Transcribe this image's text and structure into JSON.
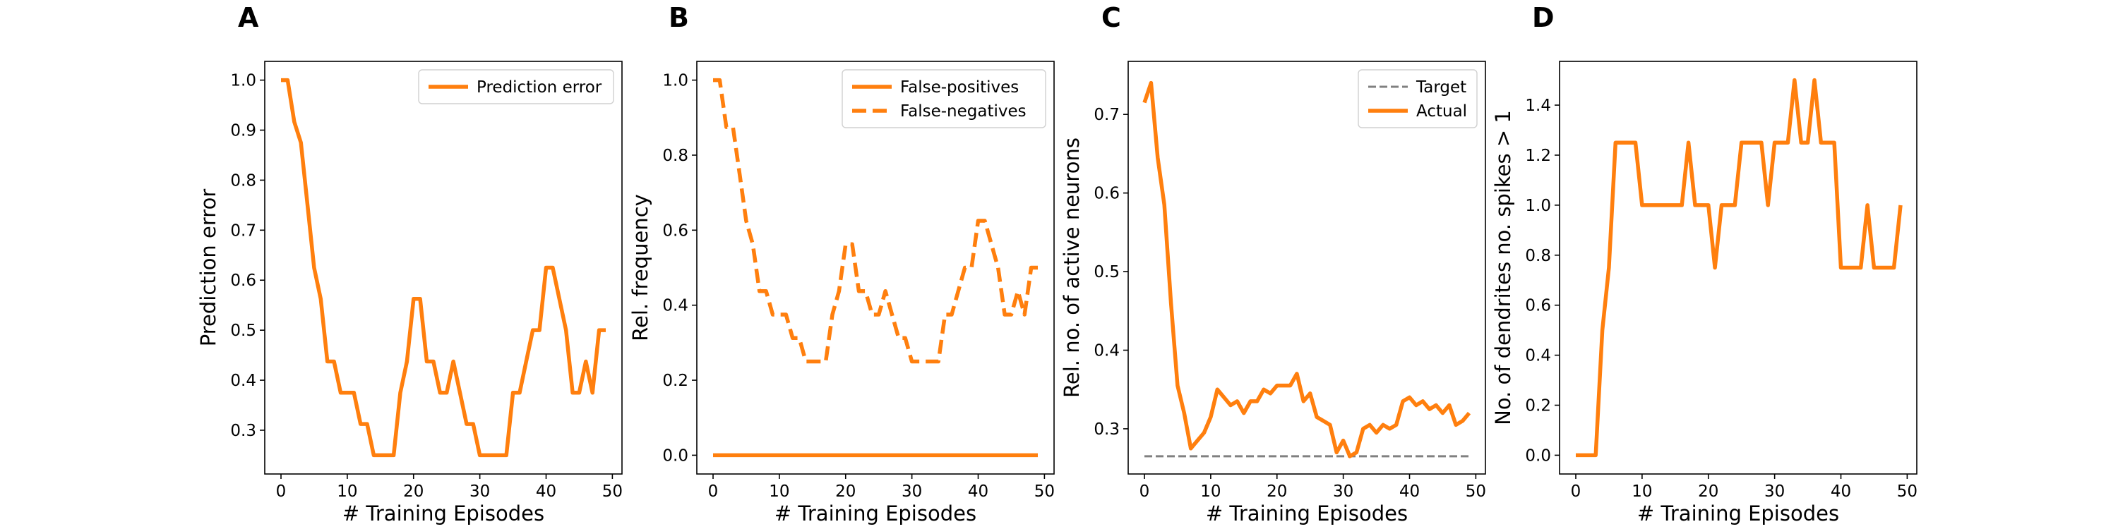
{
  "colors": {
    "series": "#ff7f0e",
    "target": "#808080",
    "axis": "#000000"
  },
  "chart_data": [
    {
      "panel": "A",
      "type": "line",
      "xlabel": "# Training Episodes",
      "ylabel": "Prediction error",
      "xlim": [
        -2.45,
        51.45
      ],
      "ylim": [
        0.2125,
        1.0375
      ],
      "xticks": [
        0,
        10,
        20,
        30,
        40,
        50
      ],
      "yticks": [
        0.3,
        0.4,
        0.5,
        0.6,
        0.7,
        0.8,
        0.9,
        1.0
      ],
      "ytick_labels": [
        "0.3",
        "0.4",
        "0.5",
        "0.6",
        "0.7",
        "0.8",
        "0.9",
        "1.0"
      ],
      "legend": "upper right",
      "series": [
        {
          "name": "Prediction error",
          "style": "solid",
          "x": [
            0,
            1,
            2,
            3,
            4,
            5,
            6,
            7,
            8,
            9,
            10,
            11,
            12,
            13,
            14,
            15,
            16,
            17,
            18,
            19,
            20,
            21,
            22,
            23,
            24,
            25,
            26,
            27,
            28,
            29,
            30,
            31,
            32,
            33,
            34,
            35,
            36,
            37,
            38,
            39,
            40,
            41,
            42,
            43,
            44,
            45,
            46,
            47,
            48,
            49
          ],
          "y": [
            1.0,
            1.0,
            0.9167,
            0.875,
            0.75,
            0.625,
            0.5625,
            0.4375,
            0.4375,
            0.375,
            0.375,
            0.375,
            0.3125,
            0.3125,
            0.25,
            0.25,
            0.25,
            0.25,
            0.375,
            0.4375,
            0.5625,
            0.5625,
            0.4375,
            0.4375,
            0.375,
            0.375,
            0.4375,
            0.375,
            0.3125,
            0.3125,
            0.25,
            0.25,
            0.25,
            0.25,
            0.25,
            0.375,
            0.375,
            0.4375,
            0.5,
            0.5,
            0.625,
            0.625,
            0.5625,
            0.5,
            0.375,
            0.375,
            0.4375,
            0.375,
            0.5,
            0.5
          ]
        }
      ]
    },
    {
      "panel": "B",
      "type": "line",
      "xlabel": "# Training Episodes",
      "ylabel": "Rel. frequency",
      "xlim": [
        -2.45,
        51.45
      ],
      "ylim": [
        -0.05,
        1.05
      ],
      "xticks": [
        0,
        10,
        20,
        30,
        40,
        50
      ],
      "yticks": [
        0.0,
        0.2,
        0.4,
        0.6,
        0.8,
        1.0
      ],
      "ytick_labels": [
        "0.0",
        "0.2",
        "0.4",
        "0.6",
        "0.8",
        "1.0"
      ],
      "legend": "upper right",
      "series": [
        {
          "name": "False-positives",
          "style": "solid",
          "x": [
            0,
            49
          ],
          "y": [
            0.0,
            0.0
          ]
        },
        {
          "name": "False-negatives",
          "style": "dashed",
          "x": [
            0,
            1,
            2,
            3,
            4,
            5,
            6,
            7,
            8,
            9,
            10,
            11,
            12,
            13,
            14,
            15,
            16,
            17,
            18,
            19,
            20,
            21,
            22,
            23,
            24,
            25,
            26,
            27,
            28,
            29,
            30,
            31,
            32,
            33,
            34,
            35,
            36,
            37,
            38,
            39,
            40,
            41,
            42,
            43,
            44,
            45,
            46,
            47,
            48,
            49
          ],
          "y": [
            1.0,
            1.0,
            0.875,
            0.875,
            0.75,
            0.625,
            0.5625,
            0.4375,
            0.4375,
            0.375,
            0.375,
            0.375,
            0.3125,
            0.3125,
            0.25,
            0.25,
            0.25,
            0.25,
            0.375,
            0.4375,
            0.5625,
            0.5625,
            0.4375,
            0.4375,
            0.375,
            0.375,
            0.4375,
            0.375,
            0.3125,
            0.3125,
            0.25,
            0.25,
            0.25,
            0.25,
            0.25,
            0.375,
            0.375,
            0.4375,
            0.5,
            0.5,
            0.625,
            0.625,
            0.5625,
            0.5,
            0.375,
            0.375,
            0.4375,
            0.375,
            0.5,
            0.5
          ]
        }
      ]
    },
    {
      "panel": "C",
      "type": "line",
      "xlabel": "# Training Episodes",
      "ylabel": "Rel. no. of active neurons",
      "xlim": [
        -2.45,
        51.45
      ],
      "ylim": [
        0.2425,
        0.7675
      ],
      "xticks": [
        0,
        10,
        20,
        30,
        40,
        50
      ],
      "yticks": [
        0.3,
        0.4,
        0.5,
        0.6,
        0.7
      ],
      "ytick_labels": [
        "0.3",
        "0.4",
        "0.5",
        "0.6",
        "0.7"
      ],
      "legend": "upper right",
      "series": [
        {
          "name": "Target",
          "style": "dashed-gray",
          "x": [
            0,
            49
          ],
          "y": [
            0.265,
            0.265
          ]
        },
        {
          "name": "Actual",
          "style": "solid",
          "x": [
            0,
            1,
            2,
            3,
            4,
            5,
            6,
            7,
            8,
            9,
            10,
            11,
            12,
            13,
            14,
            15,
            16,
            17,
            18,
            19,
            20,
            21,
            22,
            23,
            24,
            25,
            26,
            27,
            28,
            29,
            30,
            31,
            32,
            33,
            34,
            35,
            36,
            37,
            38,
            39,
            40,
            41,
            42,
            43,
            44,
            45,
            46,
            47,
            48,
            49
          ],
          "y": [
            0.715,
            0.74,
            0.645,
            0.585,
            0.46,
            0.355,
            0.32,
            0.275,
            0.285,
            0.295,
            0.315,
            0.35,
            0.34,
            0.33,
            0.335,
            0.32,
            0.335,
            0.335,
            0.35,
            0.345,
            0.355,
            0.355,
            0.355,
            0.37,
            0.335,
            0.345,
            0.315,
            0.31,
            0.305,
            0.27,
            0.285,
            0.265,
            0.27,
            0.3,
            0.305,
            0.295,
            0.305,
            0.3,
            0.305,
            0.335,
            0.34,
            0.33,
            0.335,
            0.325,
            0.33,
            0.32,
            0.33,
            0.305,
            0.31,
            0.32
          ]
        }
      ]
    },
    {
      "panel": "D",
      "type": "line",
      "xlabel": "# Training Episodes",
      "ylabel": "No. of dendrites no. spikes > 1",
      "xlim": [
        -2.45,
        51.45
      ],
      "ylim": [
        -0.075,
        1.575
      ],
      "xticks": [
        0,
        10,
        20,
        30,
        40,
        50
      ],
      "yticks": [
        0.0,
        0.2,
        0.4,
        0.6,
        0.8,
        1.0,
        1.2,
        1.4
      ],
      "ytick_labels": [
        "0.0",
        "0.2",
        "0.4",
        "0.6",
        "0.8",
        "1.0",
        "1.2",
        "1.4"
      ],
      "series": [
        {
          "name": "",
          "style": "solid",
          "x": [
            0,
            1,
            2,
            3,
            4,
            5,
            6,
            7,
            8,
            9,
            10,
            11,
            12,
            13,
            14,
            15,
            16,
            17,
            18,
            19,
            20,
            21,
            22,
            23,
            24,
            25,
            26,
            27,
            28,
            29,
            30,
            31,
            32,
            33,
            34,
            35,
            36,
            37,
            38,
            39,
            40,
            41,
            42,
            43,
            44,
            45,
            46,
            47,
            48,
            49
          ],
          "y": [
            0.0,
            0.0,
            0.0,
            0.0,
            0.5,
            0.75,
            1.25,
            1.25,
            1.25,
            1.25,
            1.0,
            1.0,
            1.0,
            1.0,
            1.0,
            1.0,
            1.0,
            1.25,
            1.0,
            1.0,
            1.0,
            0.75,
            1.0,
            1.0,
            1.0,
            1.25,
            1.25,
            1.25,
            1.25,
            1.0,
            1.25,
            1.25,
            1.25,
            1.5,
            1.25,
            1.25,
            1.5,
            1.25,
            1.25,
            1.25,
            0.75,
            0.75,
            0.75,
            0.75,
            1.0,
            0.75,
            0.75,
            0.75,
            0.75,
            1.0
          ]
        }
      ]
    }
  ]
}
